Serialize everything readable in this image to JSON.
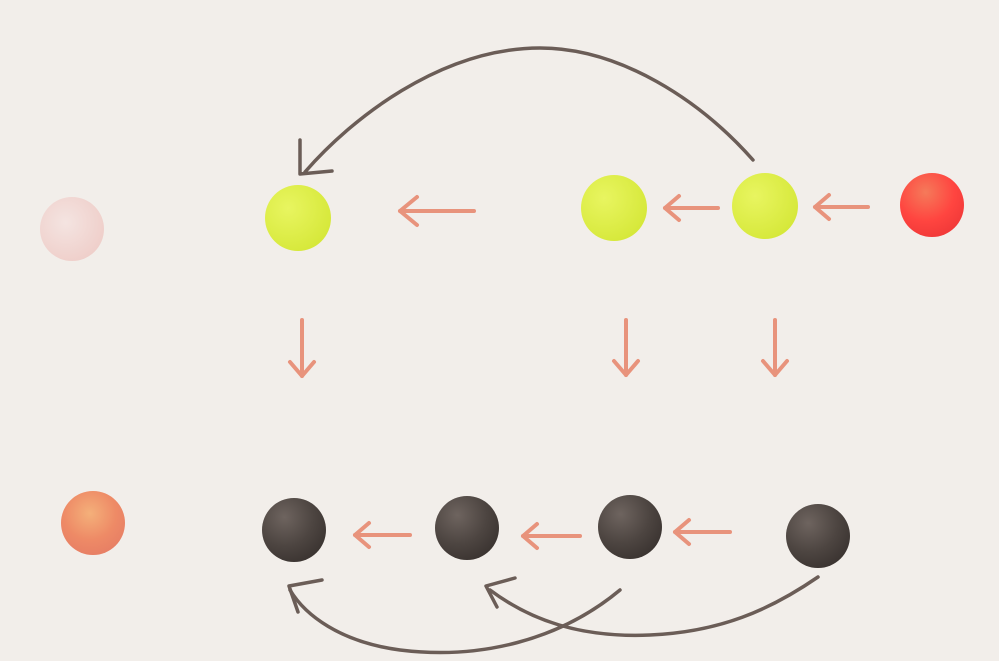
{
  "colors": {
    "background": "#f2eeea",
    "salmon_arrow": "#e8937c",
    "dark_curve": "#6b5d57",
    "yellow": "#dff045",
    "dark_ball": "#4d4541",
    "red": "#ff4540",
    "orange": "#ee8a66",
    "pale_pink": "#f2d4d0"
  },
  "balls": [
    {
      "id": "pale-pink-ball",
      "color": "pale_pink"
    },
    {
      "id": "yellow-ball-1",
      "color": "yellow"
    },
    {
      "id": "yellow-ball-2",
      "color": "yellow"
    },
    {
      "id": "yellow-ball-3",
      "color": "yellow"
    },
    {
      "id": "red-ball",
      "color": "red"
    },
    {
      "id": "orange-ball",
      "color": "orange"
    },
    {
      "id": "dark-ball-1",
      "color": "dark_ball"
    },
    {
      "id": "dark-ball-2",
      "color": "dark_ball"
    },
    {
      "id": "dark-ball-3",
      "color": "dark_ball"
    },
    {
      "id": "dark-ball-4",
      "color": "dark_ball"
    }
  ]
}
